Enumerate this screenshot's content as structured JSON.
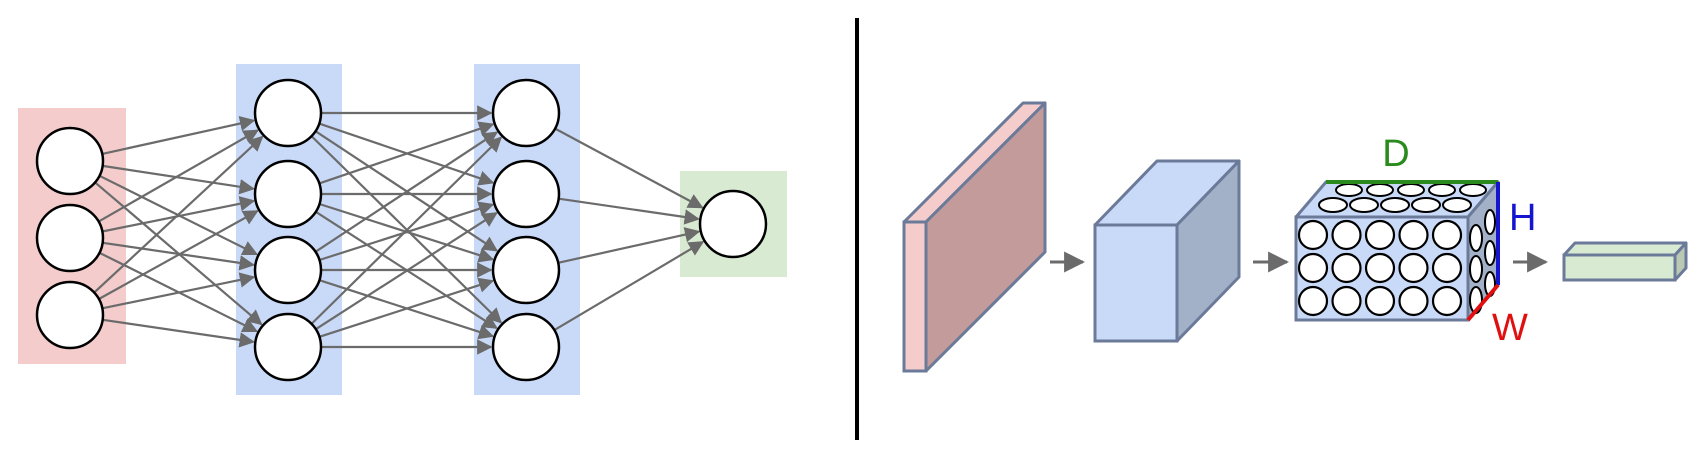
{
  "neural_net": {
    "layers": [
      {
        "role": "input",
        "neurons": 3,
        "band_color": "#f4cccc"
      },
      {
        "role": "hidden",
        "neurons": 4,
        "band_color": "#c9daf8"
      },
      {
        "role": "hidden",
        "neurons": 4,
        "band_color": "#c9daf8"
      },
      {
        "role": "output",
        "neurons": 1,
        "band_color": "#d9ead3"
      }
    ],
    "connection": "fully-connected",
    "neuron_fill": "#ffffff",
    "neuron_stroke": "#000000",
    "edge_color": "#6b6b6b"
  },
  "divider_color": "#000000",
  "conv_net": {
    "stages": [
      {
        "shape": "input-slab",
        "front_color": "#f4cccc",
        "side_color": "#c49b9b"
      },
      {
        "shape": "volume",
        "front_color": "#c9daf8",
        "side_color": "#a2b1c8"
      },
      {
        "shape": "neuron-volume",
        "front_color": "#c9daf8",
        "side_color": "#a2b1c8"
      },
      {
        "shape": "output-bar",
        "front_color": "#d9ead3",
        "side_color": "#b9c9b4"
      }
    ],
    "dimension_labels": {
      "depth": {
        "text": "D",
        "color": "#2b8a1e"
      },
      "height": {
        "text": "H",
        "color": "#1515d0"
      },
      "width": {
        "text": "W",
        "color": "#e01010"
      }
    },
    "arrow_color": "#6b6b6b"
  }
}
